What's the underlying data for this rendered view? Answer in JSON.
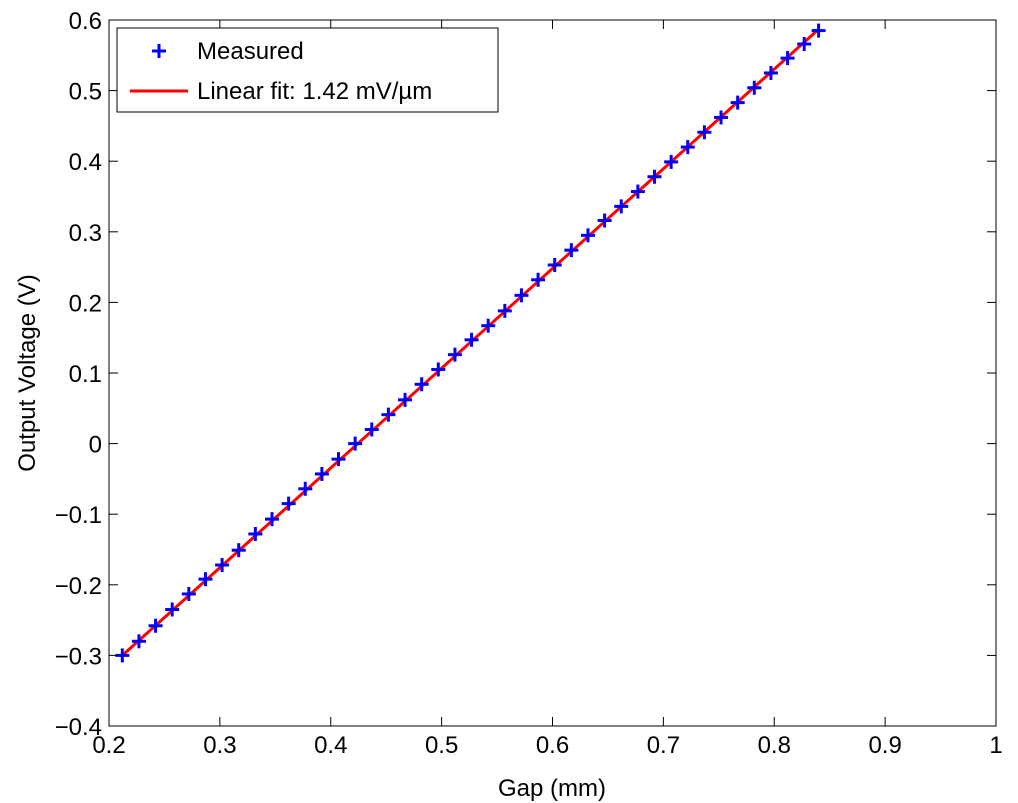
{
  "chart_data": {
    "type": "line",
    "title": "",
    "xlabel": "Gap (mm)",
    "ylabel": "Output Voltage (V)",
    "xlim": [
      0.2,
      1.0
    ],
    "ylim": [
      -0.4,
      0.6
    ],
    "xticks": [
      0.2,
      0.3,
      0.4,
      0.5,
      0.6,
      0.7,
      0.8,
      0.9,
      1.0
    ],
    "xtick_labels": [
      "0.2",
      "0.3",
      "0.4",
      "0.5",
      "0.6",
      "0.7",
      "0.8",
      "0.9",
      "1"
    ],
    "yticks": [
      -0.4,
      -0.3,
      -0.2,
      -0.1,
      0,
      0.1,
      0.2,
      0.3,
      0.4,
      0.5,
      0.6
    ],
    "ytick_labels": [
      "−0.4",
      "−0.3",
      "−0.2",
      "−0.1",
      "0",
      "0.1",
      "0.2",
      "0.3",
      "0.4",
      "0.5",
      "0.6"
    ],
    "grid": false,
    "legend_position": "top-left",
    "series": [
      {
        "name": "Measured",
        "style": "marker-plus",
        "color": "#0000ff",
        "x": [
          0.212,
          0.227,
          0.242,
          0.257,
          0.272,
          0.287,
          0.302,
          0.317,
          0.332,
          0.347,
          0.362,
          0.377,
          0.392,
          0.407,
          0.422,
          0.437,
          0.452,
          0.467,
          0.482,
          0.497,
          0.512,
          0.527,
          0.542,
          0.557,
          0.572,
          0.587,
          0.602,
          0.617,
          0.632,
          0.647,
          0.662,
          0.677,
          0.692,
          0.707,
          0.722,
          0.737,
          0.752,
          0.767,
          0.782,
          0.797,
          0.812,
          0.827,
          0.84
        ],
        "y": [
          -0.3,
          -0.28,
          -0.258,
          -0.235,
          -0.213,
          -0.192,
          -0.172,
          -0.151,
          -0.128,
          -0.107,
          -0.085,
          -0.064,
          -0.043,
          -0.022,
          0.0,
          0.02,
          0.041,
          0.062,
          0.084,
          0.105,
          0.126,
          0.147,
          0.167,
          0.188,
          0.21,
          0.232,
          0.253,
          0.274,
          0.295,
          0.316,
          0.336,
          0.357,
          0.378,
          0.399,
          0.42,
          0.441,
          0.462,
          0.483,
          0.504,
          0.525,
          0.546,
          0.566,
          0.585
        ]
      },
      {
        "name": "Linear fit: 1.42 mV/µm",
        "style": "line",
        "color": "#ff0000",
        "x": [
          0.212,
          0.84
        ],
        "y": [
          -0.3,
          0.587
        ]
      }
    ]
  }
}
